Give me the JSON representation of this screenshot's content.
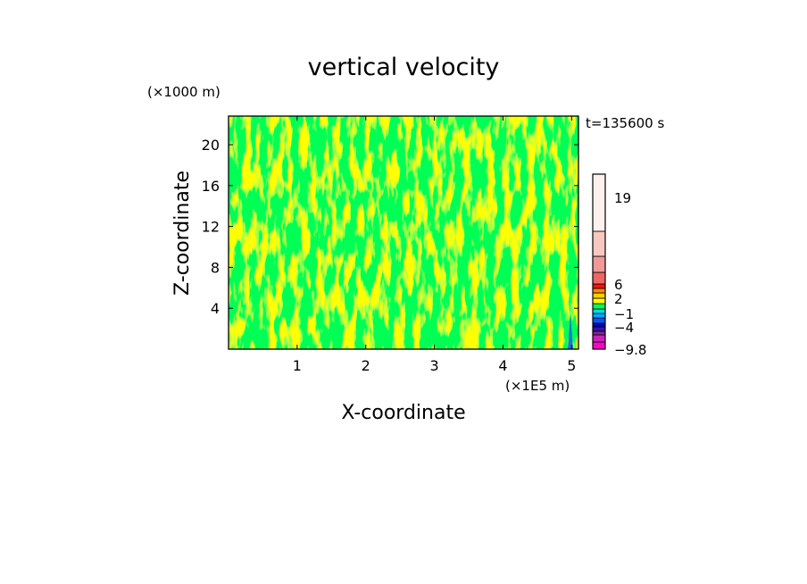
{
  "chart_data": {
    "type": "heatmap",
    "title": "vertical velocity",
    "xlabel": "X-coordinate",
    "ylabel": "Z-coordinate",
    "x_unit": "(×1E5 m)",
    "y_unit": "(×1000 m)",
    "time_label": "t=135600 s",
    "xlim": [
      0,
      5.1
    ],
    "ylim": [
      0,
      22.8
    ],
    "x_ticks": [
      1,
      2,
      3,
      4,
      5
    ],
    "y_ticks": [
      4,
      8,
      12,
      16,
      20
    ],
    "grid": false,
    "dominant_colors": [
      "#ffff00",
      "#00ff55"
    ],
    "colorbar": {
      "tick_labels": [
        "19",
        "6",
        "2",
        "−1",
        "−4",
        "−9.8"
      ],
      "tick_values": [
        19,
        6,
        2,
        -1,
        -4,
        -9.8
      ],
      "levels": [
        -9.8,
        -8,
        -6,
        -5,
        -4,
        -3,
        -2,
        -1,
        0,
        1,
        2,
        3,
        4,
        6,
        10,
        14,
        19,
        23
      ],
      "colors": [
        "#ff00cc",
        "#cc22bb",
        "#882299",
        "#3311aa",
        "#0000cc",
        "#0055ff",
        "#00aaff",
        "#00ddee",
        "#00ff55",
        "#ffff00",
        "#ffcc00",
        "#ff8800",
        "#ff1111",
        "#ee6666",
        "#f09999",
        "#f8c8c0",
        "#fff0ee"
      ]
    }
  }
}
